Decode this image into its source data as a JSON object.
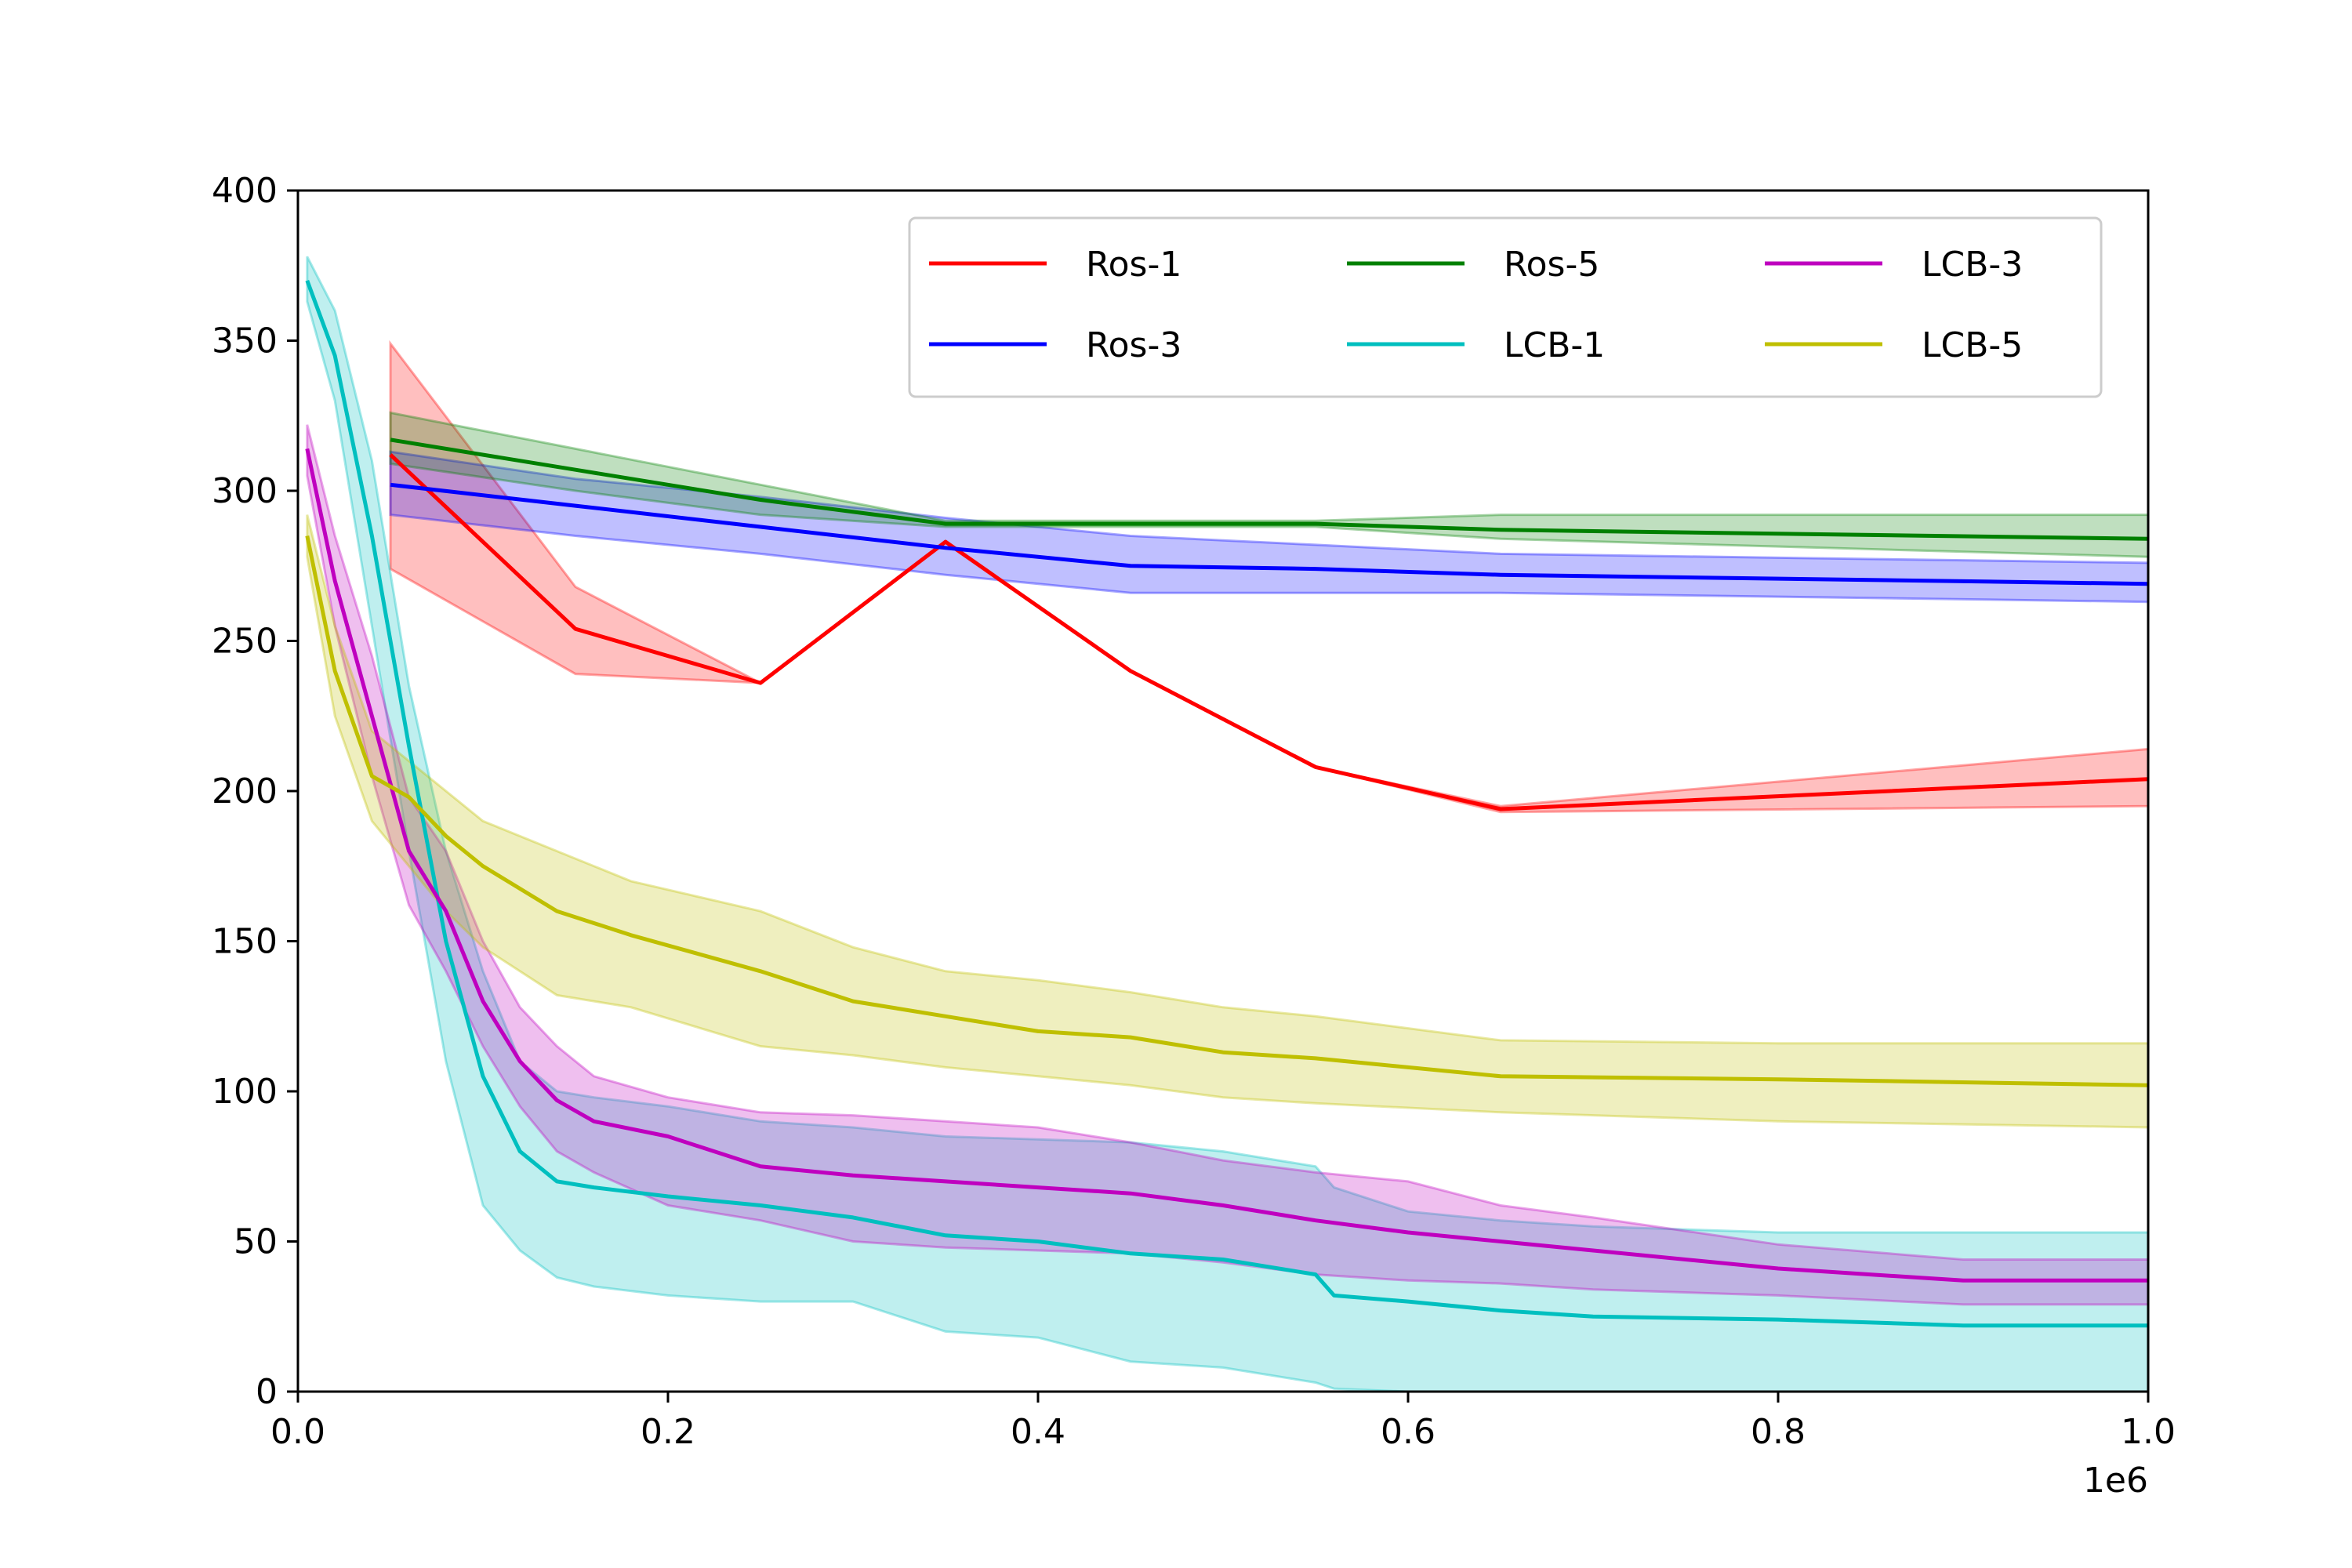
{
  "chart_data": {
    "type": "line",
    "title": "",
    "xlabel": "",
    "ylabel": "",
    "x_offset_text": "1e6",
    "xlim": [
      0,
      1000000
    ],
    "ylim": [
      0,
      400
    ],
    "x_ticks": [
      0,
      200000,
      400000,
      600000,
      800000,
      1000000
    ],
    "x_tick_labels": [
      "0.0",
      "0.2",
      "0.4",
      "0.6",
      "0.8",
      "1.0"
    ],
    "y_ticks": [
      0,
      50,
      100,
      150,
      200,
      250,
      300,
      350,
      400
    ],
    "y_tick_labels": [
      "0",
      "50",
      "100",
      "150",
      "200",
      "250",
      "300",
      "350",
      "400"
    ],
    "grid": false,
    "legend_position": "top-right",
    "legend_columns": 3,
    "series": [
      {
        "name": "Ros-1",
        "color": "#ff0000",
        "x": [
          50000,
          150000,
          250000,
          350000,
          450000,
          550000,
          650000,
          1000000
        ],
        "y": [
          312,
          254,
          236,
          283,
          240,
          208,
          194,
          204
        ],
        "lower": [
          274,
          239,
          236,
          283,
          240,
          208,
          193,
          195
        ],
        "upper": [
          349,
          268,
          236,
          283,
          240,
          208,
          195,
          214
        ]
      },
      {
        "name": "Ros-3",
        "color": "#0000ff",
        "x": [
          50000,
          150000,
          250000,
          350000,
          450000,
          550000,
          650000,
          1000000
        ],
        "y": [
          302,
          295,
          288,
          281,
          275,
          274,
          272,
          269
        ],
        "lower": [
          292,
          285,
          279,
          272,
          266,
          266,
          266,
          263
        ],
        "upper": [
          313,
          304,
          298,
          291,
          285,
          282,
          279,
          276
        ]
      },
      {
        "name": "Ros-5",
        "color": "#008000",
        "x": [
          50000,
          150000,
          250000,
          350000,
          450000,
          550000,
          650000,
          1000000
        ],
        "y": [
          317,
          307,
          297,
          289,
          289,
          289,
          287,
          284
        ],
        "lower": [
          309,
          300,
          292,
          288,
          288,
          288,
          284,
          278
        ],
        "upper": [
          326,
          314,
          302,
          290,
          290,
          290,
          292,
          292
        ]
      },
      {
        "name": "LCB-1",
        "color": "#00bfbf",
        "x": [
          5000,
          20000,
          40000,
          60000,
          80000,
          100000,
          120000,
          140000,
          160000,
          200000,
          250000,
          300000,
          350000,
          400000,
          450000,
          500000,
          550000,
          560000,
          600000,
          650000,
          700000,
          800000,
          900000,
          1000000
        ],
        "y": [
          370,
          345,
          285,
          215,
          150,
          105,
          80,
          70,
          68,
          65,
          62,
          58,
          52,
          50,
          46,
          44,
          39,
          32,
          30,
          27,
          25,
          24,
          22,
          22
        ],
        "lower": [
          363,
          330,
          255,
          180,
          110,
          62,
          47,
          38,
          35,
          32,
          30,
          30,
          20,
          18,
          10,
          8,
          3,
          1,
          0,
          0,
          0,
          0,
          0,
          0
        ],
        "upper": [
          378,
          360,
          310,
          235,
          180,
          140,
          110,
          100,
          98,
          95,
          90,
          88,
          85,
          84,
          83,
          80,
          75,
          68,
          60,
          57,
          55,
          53,
          53,
          53
        ]
      },
      {
        "name": "LCB-3",
        "color": "#bf00bf",
        "x": [
          5000,
          20000,
          40000,
          60000,
          80000,
          100000,
          120000,
          140000,
          160000,
          200000,
          250000,
          300000,
          350000,
          400000,
          450000,
          500000,
          550000,
          600000,
          650000,
          700000,
          800000,
          900000,
          1000000
        ],
        "y": [
          314,
          270,
          225,
          180,
          160,
          130,
          110,
          97,
          90,
          85,
          75,
          72,
          70,
          68,
          66,
          62,
          57,
          53,
          50,
          47,
          41,
          37,
          37
        ],
        "lower": [
          305,
          255,
          205,
          162,
          140,
          115,
          95,
          80,
          73,
          62,
          57,
          50,
          48,
          47,
          46,
          43,
          39,
          37,
          36,
          34,
          32,
          29,
          29
        ],
        "upper": [
          322,
          285,
          245,
          198,
          180,
          150,
          128,
          115,
          105,
          98,
          93,
          92,
          90,
          88,
          83,
          77,
          73,
          70,
          62,
          58,
          49,
          44,
          44
        ]
      },
      {
        "name": "LCB-5",
        "color": "#bfbf00",
        "x": [
          5000,
          20000,
          40000,
          60000,
          80000,
          100000,
          140000,
          180000,
          250000,
          300000,
          350000,
          400000,
          450000,
          500000,
          550000,
          650000,
          800000,
          1000000
        ],
        "y": [
          285,
          240,
          205,
          198,
          185,
          175,
          160,
          152,
          140,
          130,
          125,
          120,
          118,
          113,
          111,
          105,
          104,
          102
        ],
        "lower": [
          278,
          225,
          190,
          175,
          160,
          148,
          132,
          128,
          115,
          112,
          108,
          105,
          102,
          98,
          96,
          93,
          90,
          88
        ],
        "upper": [
          292,
          255,
          220,
          210,
          200,
          190,
          180,
          170,
          160,
          148,
          140,
          137,
          133,
          128,
          125,
          117,
          116,
          116
        ]
      }
    ]
  }
}
